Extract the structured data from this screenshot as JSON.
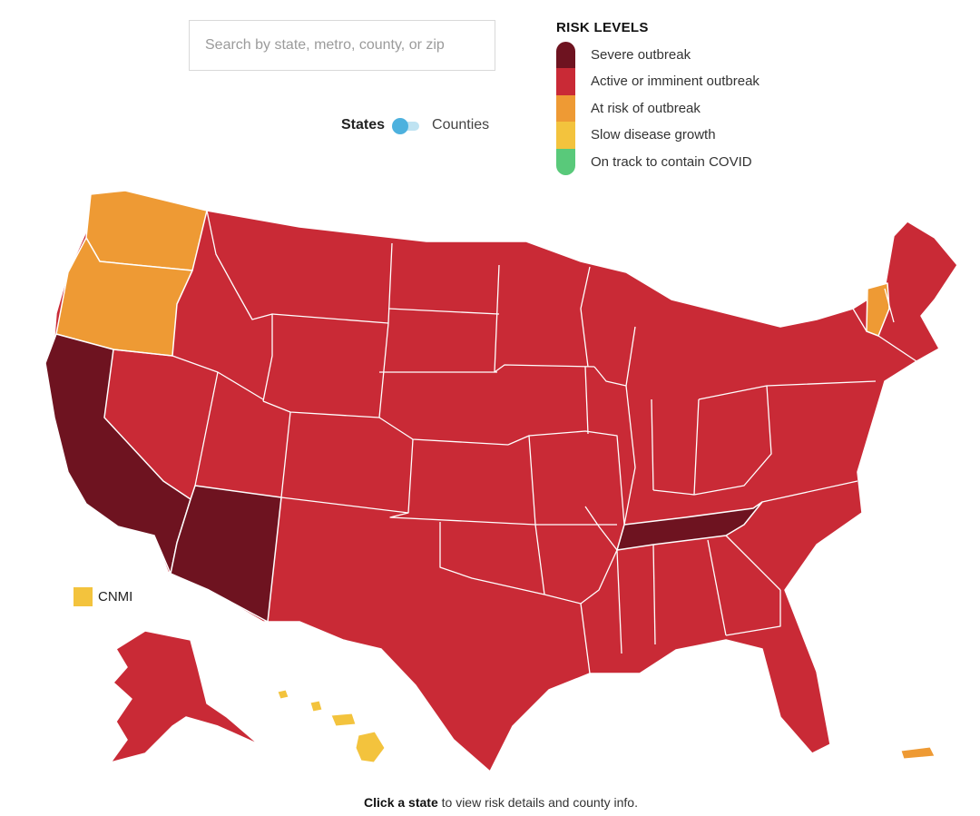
{
  "search": {
    "placeholder": "Search by state, metro, county, or zip"
  },
  "toggle": {
    "left_label": "States",
    "right_label": "Counties",
    "selected": "States"
  },
  "legend": {
    "title": "RISK LEVELS",
    "items": [
      {
        "label": "Severe outbreak",
        "color": "#6e1320"
      },
      {
        "label": "Active or imminent outbreak",
        "color": "#c92a36"
      },
      {
        "label": "At risk of outbreak",
        "color": "#ee9a34"
      },
      {
        "label": "Slow disease growth",
        "color": "#f3c33d"
      },
      {
        "label": "On track to contain COVID",
        "color": "#59c97a"
      }
    ]
  },
  "map": {
    "default_level": "Active or imminent outbreak",
    "regions": [
      {
        "id": "WA",
        "level": "At risk of outbreak"
      },
      {
        "id": "OR",
        "level": "At risk of outbreak"
      },
      {
        "id": "VT",
        "level": "At risk of outbreak"
      },
      {
        "id": "PR",
        "level": "At risk of outbreak"
      },
      {
        "id": "CA",
        "level": "Severe outbreak"
      },
      {
        "id": "AZ",
        "level": "Severe outbreak"
      },
      {
        "id": "TN",
        "level": "Severe outbreak"
      },
      {
        "id": "HI",
        "level": "Slow disease growth"
      },
      {
        "id": "CNMI",
        "level": "Slow disease growth"
      }
    ]
  },
  "cnmi": {
    "label": "CNMI"
  },
  "footer": {
    "bold": "Click a state",
    "rest": " to view risk details and county info."
  }
}
